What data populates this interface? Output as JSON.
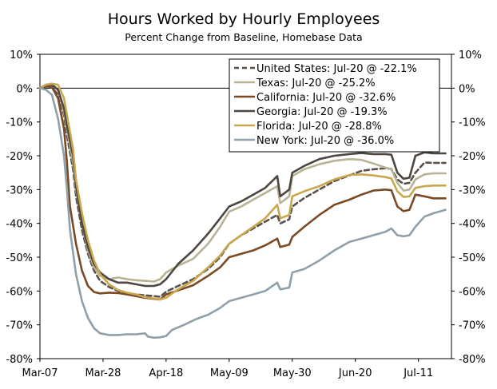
{
  "chart_data": {
    "type": "line",
    "title": "Hours Worked by Hourly Employees",
    "subtitle": "Percent Change from Baseline, Homebase Data",
    "xlabel": "",
    "ylabel": "",
    "x_range": [
      "2020-03-07",
      "2020-07-22"
    ],
    "x_ticks": [
      "Mar-07",
      "Mar-28",
      "Apr-18",
      "May-09",
      "May-30",
      "Jun-20",
      "Jul-11"
    ],
    "x_tick_dates": [
      "2020-03-07",
      "2020-03-28",
      "2020-04-18",
      "2020-05-09",
      "2020-05-30",
      "2020-06-20",
      "2020-07-11"
    ],
    "ylim": [
      -80,
      10
    ],
    "y_ticks": [
      "10%",
      "0%",
      "-10%",
      "-20%",
      "-30%",
      "-40%",
      "-50%",
      "-60%",
      "-70%",
      "-80%"
    ],
    "grid": false,
    "legend_position": "top-right",
    "series": [
      {
        "name": "United States: Jul-20 @ -22.1%",
        "color": "#5a5148",
        "dash": "dashed",
        "x": [
          "2020-03-07",
          "2020-03-09",
          "2020-03-11",
          "2020-03-13",
          "2020-03-15",
          "2020-03-16",
          "2020-03-18",
          "2020-03-19",
          "2020-03-21",
          "2020-03-23",
          "2020-03-25",
          "2020-03-27",
          "2020-03-30",
          "2020-04-02",
          "2020-04-05",
          "2020-04-08",
          "2020-04-11",
          "2020-04-14",
          "2020-04-16",
          "2020-04-18",
          "2020-04-22",
          "2020-04-27",
          "2020-05-02",
          "2020-05-06",
          "2020-05-09",
          "2020-05-13",
          "2020-05-17",
          "2020-05-21",
          "2020-05-25",
          "2020-05-26",
          "2020-05-29",
          "2020-05-30",
          "2020-06-03",
          "2020-06-08",
          "2020-06-13",
          "2020-06-18",
          "2020-06-22",
          "2020-06-26",
          "2020-06-30",
          "2020-07-02",
          "2020-07-04",
          "2020-07-06",
          "2020-07-08",
          "2020-07-10",
          "2020-07-13",
          "2020-07-16",
          "2020-07-20"
        ],
        "y": [
          0,
          0.5,
          0.3,
          -2,
          -8,
          -14,
          -24,
          -32,
          -42,
          -49,
          -54,
          -57,
          -58.8,
          -60,
          -60.8,
          -61,
          -61.3,
          -61.5,
          -61.7,
          -60.2,
          -58.5,
          -56.5,
          -53.5,
          -50,
          -46,
          -43.5,
          -41.5,
          -39.5,
          -37.5,
          -40,
          -38.8,
          -35,
          -32.5,
          -30,
          -27.5,
          -25.8,
          -24.5,
          -24,
          -23.7,
          -23.9,
          -27,
          -28.3,
          -28,
          -25,
          -22,
          -22.1,
          -22.1
        ]
      },
      {
        "name": "Texas: Jul-20 @ -25.2%",
        "color": "#b8b394",
        "dash": "solid",
        "x": [
          "2020-03-07",
          "2020-03-09",
          "2020-03-11",
          "2020-03-13",
          "2020-03-15",
          "2020-03-16",
          "2020-03-18",
          "2020-03-19",
          "2020-03-21",
          "2020-03-23",
          "2020-03-25",
          "2020-03-27",
          "2020-03-30",
          "2020-04-02",
          "2020-04-05",
          "2020-04-08",
          "2020-04-11",
          "2020-04-14",
          "2020-04-16",
          "2020-04-18",
          "2020-04-22",
          "2020-04-27",
          "2020-05-02",
          "2020-05-06",
          "2020-05-09",
          "2020-05-13",
          "2020-05-17",
          "2020-05-21",
          "2020-05-25",
          "2020-05-26",
          "2020-05-29",
          "2020-05-30",
          "2020-06-03",
          "2020-06-08",
          "2020-06-13",
          "2020-06-18",
          "2020-06-22",
          "2020-06-26",
          "2020-06-30",
          "2020-07-02",
          "2020-07-04",
          "2020-07-06",
          "2020-07-08",
          "2020-07-10",
          "2020-07-13",
          "2020-07-16",
          "2020-07-20"
        ],
        "y": [
          0,
          1,
          1.3,
          -0.5,
          -7,
          -12,
          -22,
          -30,
          -40,
          -48,
          -53,
          -55.5,
          -56.5,
          -56,
          -56.5,
          -56.8,
          -57,
          -57.2,
          -56.5,
          -54.5,
          -52.5,
          -50.5,
          -46,
          -41,
          -36.5,
          -35,
          -33,
          -31,
          -29,
          -34,
          -32,
          -26,
          -24,
          -22.5,
          -21.5,
          -21,
          -21.2,
          -22.3,
          -23.5,
          -24,
          -28,
          -30.3,
          -30,
          -27,
          -25.5,
          -25.2,
          -25.2
        ]
      },
      {
        "name": "California: Jul-20 @ -32.6%",
        "color": "#7a4a24",
        "dash": "solid",
        "x": [
          "2020-03-07",
          "2020-03-09",
          "2020-03-11",
          "2020-03-13",
          "2020-03-15",
          "2020-03-16",
          "2020-03-17",
          "2020-03-19",
          "2020-03-21",
          "2020-03-23",
          "2020-03-25",
          "2020-03-27",
          "2020-03-30",
          "2020-04-02",
          "2020-04-05",
          "2020-04-08",
          "2020-04-11",
          "2020-04-14",
          "2020-04-16",
          "2020-04-18",
          "2020-04-22",
          "2020-04-27",
          "2020-05-02",
          "2020-05-06",
          "2020-05-09",
          "2020-05-13",
          "2020-05-17",
          "2020-05-21",
          "2020-05-25",
          "2020-05-26",
          "2020-05-29",
          "2020-05-30",
          "2020-06-03",
          "2020-06-08",
          "2020-06-13",
          "2020-06-18",
          "2020-06-22",
          "2020-06-26",
          "2020-06-30",
          "2020-07-02",
          "2020-07-04",
          "2020-07-06",
          "2020-07-08",
          "2020-07-10",
          "2020-07-13",
          "2020-07-16",
          "2020-07-20"
        ],
        "y": [
          0,
          0.5,
          0.3,
          -3,
          -12,
          -22,
          -35,
          -46,
          -54,
          -58.5,
          -60.3,
          -60.7,
          -60.5,
          -60.6,
          -61,
          -61.5,
          -62,
          -62.3,
          -62.5,
          -61,
          -59.8,
          -58.3,
          -55.5,
          -53,
          -50,
          -49,
          -48,
          -46.5,
          -44.5,
          -47,
          -46.3,
          -44,
          -41,
          -37.5,
          -34.5,
          -33,
          -31.5,
          -30.3,
          -30,
          -30.2,
          -35,
          -36.4,
          -36,
          -31.5,
          -32,
          -32.6,
          -32.6
        ]
      },
      {
        "name": "Georgia: Jul-20 @ -19.3%",
        "color": "#4e4740",
        "dash": "solid",
        "x": [
          "2020-03-07",
          "2020-03-09",
          "2020-03-11",
          "2020-03-13",
          "2020-03-15",
          "2020-03-16",
          "2020-03-18",
          "2020-03-19",
          "2020-03-21",
          "2020-03-23",
          "2020-03-25",
          "2020-03-27",
          "2020-03-30",
          "2020-04-02",
          "2020-04-05",
          "2020-04-08",
          "2020-04-11",
          "2020-04-14",
          "2020-04-16",
          "2020-04-18",
          "2020-04-22",
          "2020-04-27",
          "2020-05-02",
          "2020-05-06",
          "2020-05-09",
          "2020-05-13",
          "2020-05-17",
          "2020-05-21",
          "2020-05-25",
          "2020-05-26",
          "2020-05-29",
          "2020-05-30",
          "2020-06-03",
          "2020-06-08",
          "2020-06-13",
          "2020-06-18",
          "2020-06-22",
          "2020-06-26",
          "2020-06-30",
          "2020-07-02",
          "2020-07-04",
          "2020-07-06",
          "2020-07-08",
          "2020-07-10",
          "2020-07-13",
          "2020-07-16",
          "2020-07-20"
        ],
        "y": [
          0,
          1,
          1,
          -0.5,
          -6,
          -11,
          -20,
          -29,
          -40,
          -47,
          -52,
          -54.5,
          -56.5,
          -57.5,
          -57.5,
          -58,
          -58.5,
          -58.5,
          -58,
          -56.5,
          -52,
          -48,
          -43,
          -38.5,
          -35,
          -33.5,
          -31.5,
          -29.5,
          -26,
          -32,
          -30,
          -25,
          -23,
          -21,
          -20,
          -19.5,
          -19.2,
          -19.5,
          -19.5,
          -19.7,
          -25,
          -26.8,
          -26.5,
          -20,
          -19,
          -19.3,
          -19.3
        ]
      },
      {
        "name": "Florida: Jul-20 @ -28.8%",
        "color": "#c9a74e",
        "dash": "solid",
        "x": [
          "2020-03-07",
          "2020-03-09",
          "2020-03-11",
          "2020-03-13",
          "2020-03-15",
          "2020-03-16",
          "2020-03-18",
          "2020-03-19",
          "2020-03-21",
          "2020-03-23",
          "2020-03-25",
          "2020-03-27",
          "2020-03-30",
          "2020-04-02",
          "2020-04-05",
          "2020-04-08",
          "2020-04-11",
          "2020-04-14",
          "2020-04-16",
          "2020-04-18",
          "2020-04-22",
          "2020-04-27",
          "2020-05-02",
          "2020-05-06",
          "2020-05-09",
          "2020-05-13",
          "2020-05-17",
          "2020-05-21",
          "2020-05-25",
          "2020-05-26",
          "2020-05-29",
          "2020-05-30",
          "2020-06-03",
          "2020-06-08",
          "2020-06-13",
          "2020-06-18",
          "2020-06-22",
          "2020-06-26",
          "2020-06-30",
          "2020-07-02",
          "2020-07-04",
          "2020-07-06",
          "2020-07-08",
          "2020-07-10",
          "2020-07-13",
          "2020-07-16",
          "2020-07-20"
        ],
        "y": [
          0,
          1,
          1.3,
          1,
          -3,
          -8,
          -18,
          -27,
          -37,
          -45,
          -51,
          -55,
          -58,
          -59.7,
          -60.5,
          -61,
          -61.8,
          -62.2,
          -62.5,
          -62,
          -59.5,
          -57,
          -53,
          -49.5,
          -46,
          -43.5,
          -41,
          -38.5,
          -34.5,
          -38.5,
          -37.5,
          -32,
          -30.5,
          -29,
          -27,
          -25.7,
          -25.5,
          -25.8,
          -26.3,
          -26.7,
          -30.5,
          -32.2,
          -32,
          -29.5,
          -29,
          -28.8,
          -28.8
        ]
      },
      {
        "name": "New York: Jul-20 @ -36.0%",
        "color": "#8fa0aa",
        "dash": "solid",
        "x": [
          "2020-03-07",
          "2020-03-09",
          "2020-03-11",
          "2020-03-13",
          "2020-03-15",
          "2020-03-16",
          "2020-03-17",
          "2020-03-19",
          "2020-03-21",
          "2020-03-23",
          "2020-03-25",
          "2020-03-27",
          "2020-03-30",
          "2020-04-02",
          "2020-04-05",
          "2020-04-08",
          "2020-04-11",
          "2020-04-12",
          "2020-04-14",
          "2020-04-16",
          "2020-04-18",
          "2020-04-20",
          "2020-04-24",
          "2020-04-28",
          "2020-05-02",
          "2020-05-06",
          "2020-05-09",
          "2020-05-13",
          "2020-05-17",
          "2020-05-21",
          "2020-05-25",
          "2020-05-26",
          "2020-05-29",
          "2020-05-30",
          "2020-06-03",
          "2020-06-08",
          "2020-06-13",
          "2020-06-18",
          "2020-06-22",
          "2020-06-26",
          "2020-06-30",
          "2020-07-02",
          "2020-07-04",
          "2020-07-06",
          "2020-07-08",
          "2020-07-10",
          "2020-07-13",
          "2020-07-16",
          "2020-07-20"
        ],
        "y": [
          0,
          -0.5,
          -2,
          -9,
          -20,
          -30,
          -42,
          -55,
          -63,
          -68,
          -71,
          -72.5,
          -73,
          -73,
          -72.8,
          -72.8,
          -72.5,
          -73.5,
          -73.8,
          -73.7,
          -73.3,
          -71.5,
          -70,
          -68.3,
          -67,
          -65,
          -63,
          -62,
          -61,
          -60,
          -57.5,
          -59.5,
          -59,
          -54.5,
          -53.5,
          -51,
          -48,
          -45.5,
          -44.5,
          -43.5,
          -42.5,
          -41.5,
          -43.5,
          -43.8,
          -43.5,
          -41,
          -38,
          -37,
          -36
        ]
      }
    ]
  }
}
